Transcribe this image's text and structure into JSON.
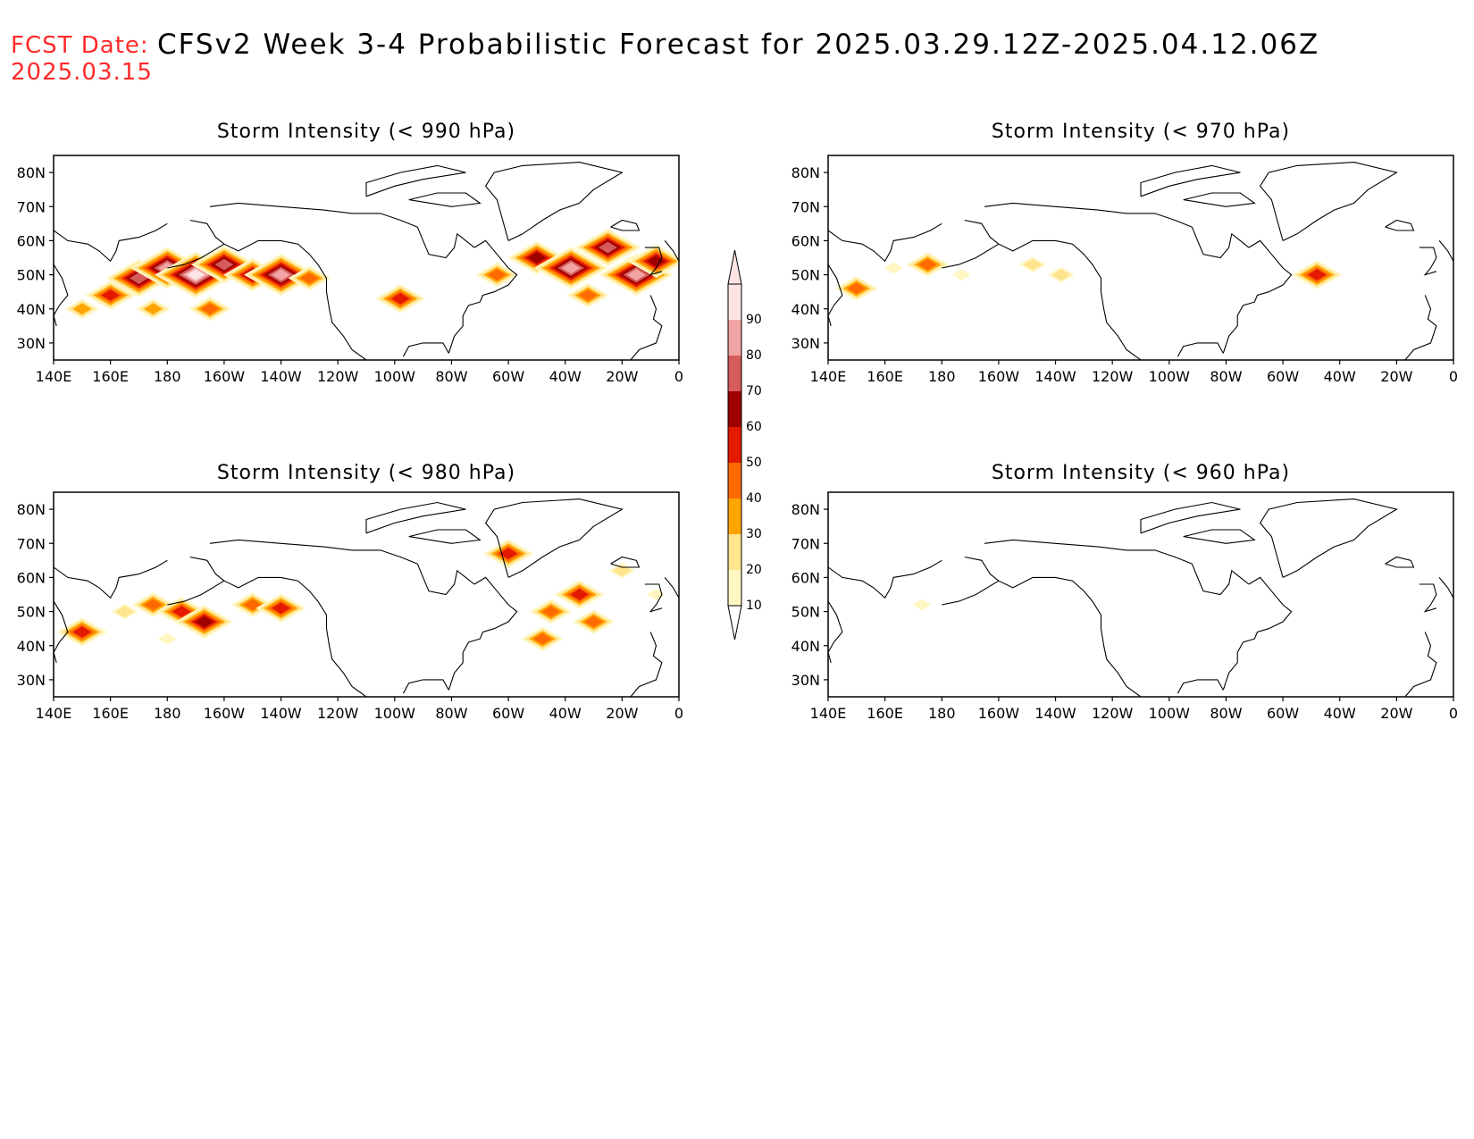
{
  "header": {
    "fcst_label": "FCST Date:",
    "fcst_date": "2025.03.15",
    "title": "CFSv2 Week 3-4 Probabilistic Forecast for 2025.03.29.12Z-2025.04.12.06Z"
  },
  "colors": {
    "c10": "#fff6c2",
    "c20": "#ffe48e",
    "c30": "#ffa500",
    "c40": "#ff6a00",
    "c50": "#e31a00",
    "c60": "#9e0000",
    "c70": "#d65b5b",
    "c80": "#f2a3a3",
    "c90": "#fde3e3",
    "coast": "#000000"
  },
  "colorbar": {
    "levels": [
      "10",
      "20",
      "30",
      "40",
      "50",
      "60",
      "70",
      "80",
      "90"
    ]
  },
  "axes": {
    "lon_ticks": [
      "140E",
      "160E",
      "180",
      "160W",
      "140W",
      "120W",
      "100W",
      "80W",
      "60W",
      "40W",
      "20W",
      "0"
    ],
    "lat_ticks": [
      "80N",
      "70N",
      "60N",
      "50N",
      "40N",
      "30N"
    ],
    "lon_range": [
      140,
      360
    ],
    "lat_range": [
      25,
      85
    ]
  },
  "panels": [
    {
      "id": "p990",
      "title": "Storm Intensity (< 990 hPa)",
      "blobs": [
        {
          "lon": 150,
          "lat": 40,
          "prob": 30
        },
        {
          "lon": 160,
          "lat": 44,
          "prob": 50
        },
        {
          "lon": 170,
          "lat": 49,
          "prob": 70
        },
        {
          "lon": 180,
          "lat": 52,
          "prob": 80
        },
        {
          "lon": 190,
          "lat": 50,
          "prob": 90
        },
        {
          "lon": 200,
          "lat": 53,
          "prob": 70
        },
        {
          "lon": 210,
          "lat": 50,
          "prob": 60
        },
        {
          "lon": 220,
          "lat": 50,
          "prob": 80
        },
        {
          "lon": 230,
          "lat": 49,
          "prob": 40
        },
        {
          "lon": 175,
          "lat": 40,
          "prob": 30
        },
        {
          "lon": 195,
          "lat": 40,
          "prob": 40
        },
        {
          "lon": 262,
          "lat": 43,
          "prob": 50
        },
        {
          "lon": 296,
          "lat": 50,
          "prob": 40
        },
        {
          "lon": 310,
          "lat": 55,
          "prob": 60
        },
        {
          "lon": 322,
          "lat": 52,
          "prob": 80
        },
        {
          "lon": 335,
          "lat": 58,
          "prob": 70
        },
        {
          "lon": 345,
          "lat": 50,
          "prob": 80
        },
        {
          "lon": 352,
          "lat": 54,
          "prob": 60
        },
        {
          "lon": 328,
          "lat": 44,
          "prob": 40
        }
      ]
    },
    {
      "id": "p970",
      "title": "Storm Intensity (< 970 hPa)",
      "blobs": [
        {
          "lon": 150,
          "lat": 46,
          "prob": 40
        },
        {
          "lon": 163,
          "lat": 52,
          "prob": 10
        },
        {
          "lon": 175,
          "lat": 53,
          "prob": 40
        },
        {
          "lon": 187,
          "lat": 50,
          "prob": 10
        },
        {
          "lon": 212,
          "lat": 53,
          "prob": 20
        },
        {
          "lon": 222,
          "lat": 50,
          "prob": 20
        },
        {
          "lon": 312,
          "lat": 50,
          "prob": 50
        }
      ]
    },
    {
      "id": "p980",
      "title": "Storm Intensity (< 980 hPa)",
      "blobs": [
        {
          "lon": 150,
          "lat": 44,
          "prob": 50
        },
        {
          "lon": 165,
          "lat": 50,
          "prob": 20
        },
        {
          "lon": 175,
          "lat": 52,
          "prob": 40
        },
        {
          "lon": 185,
          "lat": 50,
          "prob": 50
        },
        {
          "lon": 193,
          "lat": 47,
          "prob": 60
        },
        {
          "lon": 210,
          "lat": 52,
          "prob": 40
        },
        {
          "lon": 220,
          "lat": 51,
          "prob": 50
        },
        {
          "lon": 180,
          "lat": 42,
          "prob": 10
        },
        {
          "lon": 300,
          "lat": 67,
          "prob": 50
        },
        {
          "lon": 315,
          "lat": 50,
          "prob": 40
        },
        {
          "lon": 325,
          "lat": 55,
          "prob": 50
        },
        {
          "lon": 330,
          "lat": 47,
          "prob": 40
        },
        {
          "lon": 340,
          "lat": 62,
          "prob": 20
        },
        {
          "lon": 352,
          "lat": 55,
          "prob": 10
        },
        {
          "lon": 312,
          "lat": 42,
          "prob": 40
        }
      ]
    },
    {
      "id": "p960",
      "title": "Storm Intensity (< 960 hPa)",
      "blobs": [
        {
          "lon": 173,
          "lat": 52,
          "prob": 10
        }
      ]
    }
  ]
}
